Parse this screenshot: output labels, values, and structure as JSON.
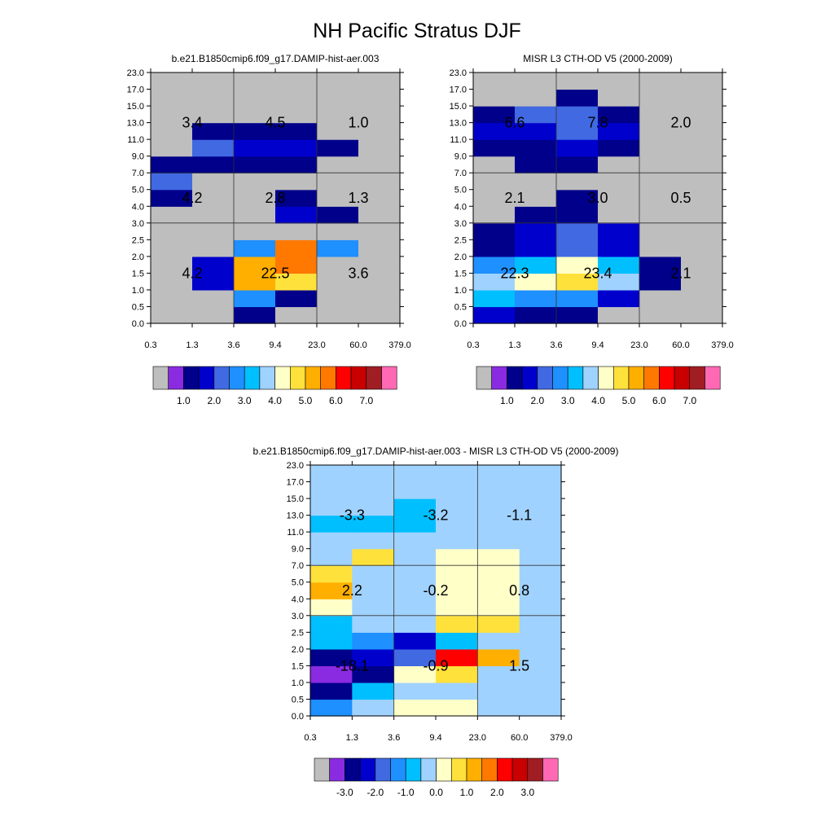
{
  "figure": {
    "title": "NH Pacific Stratus DJF"
  },
  "palette": {
    "missing": "#bebebe",
    "colors": [
      "#8a2be2",
      "#00008b",
      "#0000cd",
      "#4169e1",
      "#1e90ff",
      "#00bfff",
      "#a0d2ff",
      "#ffffc8",
      "#ffe13c",
      "#ffaf00",
      "#ff7800",
      "#ff0000",
      "#c80000",
      "#a01e23",
      "#ff69b4"
    ]
  },
  "axes": {
    "x_ticks": [
      "0.3",
      "1.3",
      "3.6",
      "9.4",
      "23.0",
      "60.0",
      "379.0"
    ],
    "y_ticks": [
      "0.0",
      "0.5",
      "1.0",
      "1.5",
      "2.0",
      "2.5",
      "3.0",
      "4.0",
      "5.0",
      "7.0",
      "9.0",
      "11.0",
      "13.0",
      "15.0",
      "17.0",
      "23.0"
    ],
    "x_label": "",
    "y_label": ""
  },
  "chart_data": [
    {
      "type": "heatmap",
      "title": "b.e21.B1850cmip6.f09_g17.DAMIP-hist-aer.003",
      "xlabel": "",
      "ylabel": "",
      "x_edges": [
        "0.3",
        "1.3",
        "3.6",
        "9.4",
        "23.0",
        "60.0",
        "379.0"
      ],
      "y_edges": [
        "0.0",
        "0.5",
        "1.0",
        "1.5",
        "2.0",
        "2.5",
        "3.0",
        "4.0",
        "5.0",
        "7.0",
        "9.0",
        "11.0",
        "13.0",
        "15.0",
        "17.0",
        "23.0"
      ],
      "levels": [
        1.0,
        1.5,
        2.0,
        2.5,
        3.0,
        3.5,
        4.0,
        4.5,
        5.0,
        5.5,
        6.0,
        6.5,
        7.0,
        7.5
      ],
      "colorbar_labels": [
        "1.0",
        "2.0",
        "3.0",
        "4.0",
        "5.0",
        "6.0",
        "7.0"
      ],
      "color_index_rows_bottom_to_top": [
        [
          0,
          0,
          1,
          0,
          0,
          0
        ],
        [
          0,
          0,
          4,
          1,
          0,
          0
        ],
        [
          0,
          2,
          9,
          8,
          0,
          0
        ],
        [
          0,
          2,
          9,
          10,
          0,
          0
        ],
        [
          0,
          0,
          4,
          10,
          4,
          0
        ],
        [
          0,
          0,
          0,
          0,
          0,
          0
        ],
        [
          0,
          0,
          0,
          2,
          1,
          0
        ],
        [
          1,
          0,
          0,
          1,
          0,
          0
        ],
        [
          3,
          0,
          0,
          0,
          0,
          0
        ],
        [
          1,
          1,
          1,
          1,
          0,
          0
        ],
        [
          0,
          3,
          2,
          2,
          1,
          0
        ],
        [
          0,
          1,
          1,
          1,
          0,
          0
        ],
        [
          0,
          0,
          0,
          0,
          0,
          0
        ],
        [
          0,
          0,
          0,
          0,
          0,
          0
        ],
        [
          0,
          0,
          0,
          0,
          0,
          0
        ]
      ],
      "block_labels": [
        {
          "label": "3.4",
          "col": 0,
          "row": "high"
        },
        {
          "label": "4.5",
          "col": 1,
          "row": "high"
        },
        {
          "label": "1.0",
          "col": 2,
          "row": "high"
        },
        {
          "label": "4.2",
          "col": 0,
          "row": "mid"
        },
        {
          "label": "2.8",
          "col": 1,
          "row": "mid"
        },
        {
          "label": "1.3",
          "col": 2,
          "row": "mid"
        },
        {
          "label": "4.2",
          "col": 0,
          "row": "low"
        },
        {
          "label": "22.5",
          "col": 1,
          "row": "low"
        },
        {
          "label": "3.6",
          "col": 2,
          "row": "low"
        }
      ]
    },
    {
      "type": "heatmap",
      "title": "MISR L3 CTH-OD V5 (2000-2009)",
      "xlabel": "",
      "ylabel": "",
      "x_edges": [
        "0.3",
        "1.3",
        "3.6",
        "9.4",
        "23.0",
        "60.0",
        "379.0"
      ],
      "y_edges": [
        "0.0",
        "0.5",
        "1.0",
        "1.5",
        "2.0",
        "2.5",
        "3.0",
        "4.0",
        "5.0",
        "7.0",
        "9.0",
        "11.0",
        "13.0",
        "15.0",
        "17.0",
        "23.0"
      ],
      "levels": [
        1.0,
        1.5,
        2.0,
        2.5,
        3.0,
        3.5,
        4.0,
        4.5,
        5.0,
        5.5,
        6.0,
        6.5,
        7.0,
        7.5
      ],
      "colorbar_labels": [
        "1.0",
        "2.0",
        "3.0",
        "4.0",
        "5.0",
        "6.0",
        "7.0"
      ],
      "color_index_rows_bottom_to_top": [
        [
          2,
          1,
          1,
          0,
          0,
          0
        ],
        [
          5,
          4,
          4,
          2,
          0,
          0
        ],
        [
          6,
          7,
          8,
          6,
          1,
          0
        ],
        [
          4,
          5,
          7,
          5,
          1,
          0
        ],
        [
          1,
          2,
          3,
          2,
          0,
          0
        ],
        [
          1,
          2,
          3,
          2,
          0,
          0
        ],
        [
          0,
          1,
          1,
          0,
          0,
          0
        ],
        [
          0,
          0,
          1,
          0,
          0,
          0
        ],
        [
          0,
          0,
          0,
          0,
          0,
          0
        ],
        [
          0,
          1,
          1,
          0,
          0,
          0
        ],
        [
          1,
          1,
          2,
          1,
          0,
          0
        ],
        [
          2,
          2,
          3,
          2,
          0,
          0
        ],
        [
          1,
          3,
          3,
          1,
          0,
          0
        ],
        [
          0,
          0,
          1,
          0,
          0,
          0
        ],
        [
          0,
          0,
          0,
          0,
          0,
          0
        ]
      ],
      "block_labels": [
        {
          "label": "6.6",
          "col": 0,
          "row": "high"
        },
        {
          "label": "7.8",
          "col": 1,
          "row": "high"
        },
        {
          "label": "2.0",
          "col": 2,
          "row": "high"
        },
        {
          "label": "2.1",
          "col": 0,
          "row": "mid"
        },
        {
          "label": "3.0",
          "col": 1,
          "row": "mid"
        },
        {
          "label": "0.5",
          "col": 2,
          "row": "mid"
        },
        {
          "label": "22.3",
          "col": 0,
          "row": "low"
        },
        {
          "label": "23.4",
          "col": 1,
          "row": "low"
        },
        {
          "label": "2.1",
          "col": 2,
          "row": "low"
        }
      ]
    },
    {
      "type": "heatmap",
      "title": "b.e21.B1850cmip6.f09_g17.DAMIP-hist-aer.003 - MISR L3 CTH-OD V5 (2000-2009)",
      "xlabel": "",
      "ylabel": "",
      "x_edges": [
        "0.3",
        "1.3",
        "3.6",
        "9.4",
        "23.0",
        "60.0",
        "379.0"
      ],
      "y_edges": [
        "0.0",
        "0.5",
        "1.0",
        "1.5",
        "2.0",
        "2.5",
        "3.0",
        "4.0",
        "5.0",
        "7.0",
        "9.0",
        "11.0",
        "13.0",
        "15.0",
        "17.0",
        "23.0"
      ],
      "levels": [
        -3.5,
        -3.0,
        -2.5,
        -2.0,
        -1.5,
        -1.0,
        -0.5,
        0.0,
        0.5,
        1.0,
        1.5,
        2.0,
        2.5,
        3.0,
        3.5
      ],
      "colorbar_labels": [
        "-3.0",
        "-2.0",
        "-1.0",
        "0.0",
        "1.0",
        "2.0",
        "3.0"
      ],
      "color_index_rows_bottom_to_top": [
        [
          4,
          6,
          7,
          7,
          6,
          6
        ],
        [
          1,
          5,
          6,
          6,
          6,
          6
        ],
        [
          0,
          1,
          7,
          8,
          6,
          6
        ],
        [
          1,
          2,
          3,
          11,
          9,
          6
        ],
        [
          5,
          4,
          2,
          5,
          6,
          6
        ],
        [
          5,
          6,
          6,
          8,
          8,
          6
        ],
        [
          7,
          6,
          6,
          7,
          7,
          6
        ],
        [
          9,
          6,
          6,
          7,
          7,
          6
        ],
        [
          8,
          6,
          6,
          7,
          7,
          6
        ],
        [
          6,
          8,
          6,
          7,
          7,
          6
        ],
        [
          6,
          6,
          6,
          6,
          6,
          6
        ],
        [
          5,
          5,
          5,
          6,
          6,
          6
        ],
        [
          6,
          6,
          5,
          6,
          6,
          6
        ],
        [
          6,
          6,
          6,
          6,
          6,
          6
        ],
        [
          6,
          6,
          6,
          6,
          6,
          6
        ]
      ],
      "block_labels": [
        {
          "label": "-3.3",
          "col": 0,
          "row": "high"
        },
        {
          "label": "-3.2",
          "col": 1,
          "row": "high"
        },
        {
          "label": "-1.1",
          "col": 2,
          "row": "high"
        },
        {
          "label": "2.2",
          "col": 0,
          "row": "mid"
        },
        {
          "label": "-0.2",
          "col": 1,
          "row": "mid"
        },
        {
          "label": "0.8",
          "col": 2,
          "row": "mid"
        },
        {
          "label": "-18.1",
          "col": 0,
          "row": "low"
        },
        {
          "label": "-0.9",
          "col": 1,
          "row": "low"
        },
        {
          "label": "1.5",
          "col": 2,
          "row": "low"
        }
      ]
    }
  ]
}
